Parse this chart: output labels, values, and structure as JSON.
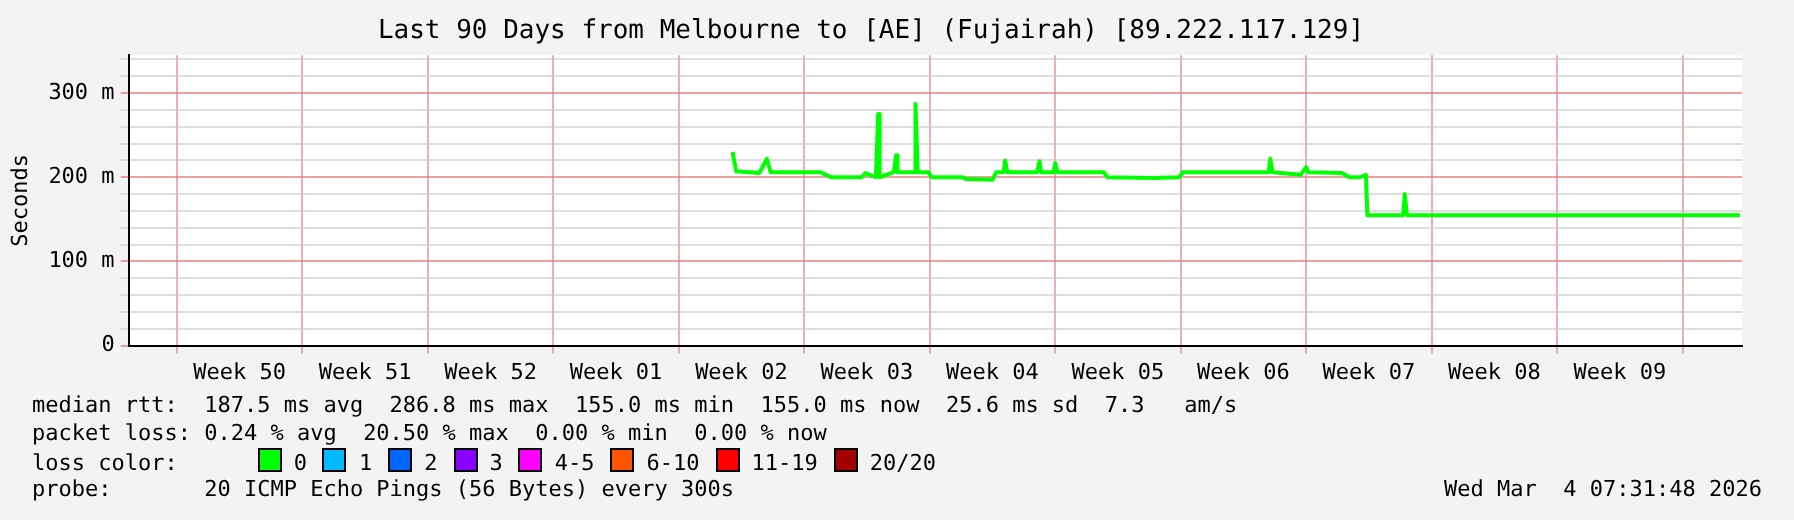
{
  "chart_data": {
    "type": "line",
    "title": "Last 90 Days from Melbourne to [AE] (Fujairah) [89.222.117.129]",
    "ylabel": "Seconds",
    "x": [
      "2026-01-07T00:00",
      "2026-01-07T05:00",
      "2026-01-08T12:00",
      "2026-01-08T22:00",
      "2026-01-09T03:00",
      "2026-01-11T22:00",
      "2026-01-12T12:00",
      "2026-01-14T05:00",
      "2026-01-14T10:00",
      "2026-01-15T00:00",
      "2026-01-15T03:00",
      "2026-01-15T05:00",
      "2026-01-16T00:00",
      "2026-01-16T03:00",
      "2026-01-16T05:00",
      "2026-01-17T03:00",
      "2026-01-17T05:00",
      "2026-01-17T08:00",
      "2026-01-17T22:00",
      "2026-01-18T03:00",
      "2026-01-19T20:00",
      "2026-01-20T00:00",
      "2026-01-21T12:00",
      "2026-01-21T17:00",
      "2026-01-22T03:00",
      "2026-01-22T05:00",
      "2026-01-22T08:00",
      "2026-01-24T00:00",
      "2026-01-24T03:00",
      "2026-01-24T05:00",
      "2026-01-24T22:00",
      "2026-01-25T00:00",
      "2026-01-25T03:00",
      "2026-01-27T17:00",
      "2026-01-27T22:00",
      "2026-01-30T12:00",
      "2026-01-31T22:00",
      "2026-02-01T03:00",
      "2026-02-05T22:00",
      "2026-02-06T00:00",
      "2026-02-06T03:00",
      "2026-02-07T17:00",
      "2026-02-08T00:00",
      "2026-02-08T03:00",
      "2026-02-10T00:00",
      "2026-02-10T10:00",
      "2026-02-11T00:00",
      "2026-02-11T08:00",
      "2026-02-11T10:00",
      "2026-02-13T10:00",
      "2026-02-13T12:00",
      "2026-02-13T15:00",
      "2026-03-04T05:00"
    ],
    "series": [
      {
        "name": "0",
        "color": "#00ff00",
        "values": [
          230,
          207,
          205,
          222,
          206,
          206,
          200,
          200,
          205,
          200,
          275,
          200,
          206,
          226,
          206,
          206,
          287,
          206,
          206,
          200,
          200,
          198,
          197,
          206,
          206,
          220,
          206,
          206,
          219,
          206,
          206,
          217,
          206,
          206,
          200,
          199,
          200,
          206,
          206,
          222,
          206,
          203,
          212,
          206,
          205,
          200,
          200,
          203,
          155,
          155,
          180,
          155,
          155
        ]
      },
      {
        "name": "1",
        "color": "#00bbff",
        "values": [
          null,
          null,
          null,
          null,
          null,
          null,
          null,
          null,
          null,
          null,
          null,
          null,
          null,
          null,
          null,
          null,
          null,
          null,
          null,
          null,
          null,
          null,
          null,
          null,
          null,
          null,
          null,
          null,
          null,
          null,
          null,
          null,
          null,
          null,
          null,
          null,
          null,
          null,
          null,
          null,
          null,
          null,
          null,
          null,
          null,
          null,
          null,
          null,
          null,
          null,
          null,
          null,
          null
        ]
      },
      {
        "name": "2",
        "color": "#0066ff",
        "values": [
          null,
          null,
          null,
          null,
          null,
          null,
          null,
          null,
          null,
          null,
          null,
          null,
          null,
          null,
          null,
          null,
          null,
          null,
          null,
          null,
          null,
          null,
          null,
          null,
          null,
          null,
          null,
          null,
          null,
          null,
          null,
          null,
          null,
          null,
          null,
          null,
          null,
          null,
          null,
          null,
          null,
          null,
          null,
          null,
          null,
          null,
          null,
          null,
          null,
          null,
          null,
          null,
          null
        ]
      },
      {
        "name": "3",
        "color": "#8800ff",
        "values": [
          null,
          null,
          null,
          null,
          null,
          null,
          null,
          null,
          null,
          null,
          null,
          null,
          null,
          null,
          null,
          null,
          null,
          null,
          null,
          null,
          null,
          null,
          null,
          null,
          null,
          null,
          null,
          null,
          null,
          null,
          null,
          null,
          null,
          null,
          null,
          null,
          null,
          null,
          null,
          null,
          null,
          null,
          null,
          null,
          null,
          null,
          null,
          null,
          null,
          null,
          null,
          null,
          null
        ]
      },
      {
        "name": "4-5",
        "color": "#ff00ff",
        "values": [
          null,
          null,
          null,
          null,
          null,
          null,
          null,
          null,
          null,
          null,
          null,
          null,
          null,
          null,
          null,
          null,
          null,
          null,
          null,
          null,
          null,
          null,
          null,
          null,
          null,
          null,
          null,
          null,
          null,
          null,
          null,
          null,
          null,
          null,
          null,
          null,
          null,
          null,
          null,
          null,
          null,
          null,
          null,
          null,
          null,
          null,
          null,
          null,
          null,
          null,
          null,
          null,
          null
        ]
      },
      {
        "name": "6-10",
        "color": "#ff5500",
        "values": [
          null,
          null,
          null,
          null,
          null,
          null,
          null,
          null,
          null,
          null,
          null,
          null,
          null,
          null,
          null,
          null,
          null,
          null,
          null,
          null,
          null,
          null,
          null,
          null,
          null,
          null,
          null,
          null,
          null,
          null,
          null,
          null,
          null,
          null,
          null,
          null,
          null,
          null,
          null,
          null,
          null,
          null,
          null,
          null,
          null,
          null,
          null,
          null,
          null,
          null,
          null,
          null,
          null
        ]
      },
      {
        "name": "11-19",
        "color": "#ff0000",
        "values": [
          null,
          null,
          null,
          null,
          null,
          null,
          null,
          null,
          null,
          null,
          null,
          null,
          null,
          null,
          null,
          null,
          null,
          null,
          null,
          null,
          null,
          null,
          null,
          null,
          null,
          null,
          null,
          null,
          null,
          null,
          null,
          null,
          null,
          null,
          null,
          null,
          null,
          null,
          null,
          null,
          null,
          null,
          null,
          null,
          null,
          null,
          null,
          null,
          null,
          null,
          null,
          null,
          null
        ]
      },
      {
        "name": "20/20",
        "color": "#a10000",
        "values": [
          null,
          null,
          null,
          null,
          null,
          null,
          null,
          null,
          null,
          null,
          null,
          null,
          null,
          null,
          null,
          null,
          null,
          null,
          null,
          null,
          null,
          null,
          null,
          null,
          null,
          null,
          null,
          null,
          null,
          null,
          null,
          null,
          null,
          null,
          null,
          null,
          null,
          null,
          null,
          null,
          null,
          null,
          null,
          null,
          null,
          null,
          null,
          null,
          null,
          null,
          null,
          null,
          null
        ]
      }
    ],
    "legend": "bottom",
    "legend_title": "loss color:",
    "grid": true,
    "xlim": [
      "2025-12-04T07:31",
      "2026-03-04T07:31"
    ],
    "xticks": [
      {
        "value": "2025-12-07",
        "label": null
      },
      {
        "value": "2025-12-10T12:00",
        "label": "Week 50"
      },
      {
        "value": "2025-12-14",
        "label": null
      },
      {
        "value": "2025-12-17T12:00",
        "label": "Week 51"
      },
      {
        "value": "2025-12-21",
        "label": null
      },
      {
        "value": "2025-12-24T12:00",
        "label": "Week 52"
      },
      {
        "value": "2025-12-28",
        "label": null
      },
      {
        "value": "2025-12-31T12:00",
        "label": "Week 01"
      },
      {
        "value": "2026-01-04",
        "label": null
      },
      {
        "value": "2026-01-07T12:00",
        "label": "Week 02"
      },
      {
        "value": "2026-01-11",
        "label": null
      },
      {
        "value": "2026-01-14T12:00",
        "label": "Week 03"
      },
      {
        "value": "2026-01-18",
        "label": null
      },
      {
        "value": "2026-01-21T12:00",
        "label": "Week 04"
      },
      {
        "value": "2026-01-25",
        "label": null
      },
      {
        "value": "2026-01-28T12:00",
        "label": "Week 05"
      },
      {
        "value": "2026-02-01",
        "label": null
      },
      {
        "value": "2026-02-04T12:00",
        "label": "Week 06"
      },
      {
        "value": "2026-02-08",
        "label": null
      },
      {
        "value": "2026-02-11T12:00",
        "label": "Week 07"
      },
      {
        "value": "2026-02-15",
        "label": null
      },
      {
        "value": "2026-02-18T12:00",
        "label": "Week 08"
      },
      {
        "value": "2026-02-22",
        "label": null
      },
      {
        "value": "2026-02-25T12:00",
        "label": "Week 09"
      },
      {
        "value": "2026-03-01",
        "label": null
      }
    ],
    "ylim": [
      0,
      345
    ],
    "yticks": [
      0,
      {
        "value": 20,
        "label": null
      },
      {
        "value": 40,
        "label": null
      },
      {
        "value": 60,
        "label": null
      },
      {
        "value": 80,
        "label": null
      },
      {
        "value": 100,
        "label": "100 m"
      },
      {
        "value": 120,
        "label": null
      },
      {
        "value": 140,
        "label": null
      },
      {
        "value": 160,
        "label": null
      },
      {
        "value": 180,
        "label": null
      },
      {
        "value": 200,
        "label": "200 m"
      },
      {
        "value": 220,
        "label": null
      },
      {
        "value": 240,
        "label": null
      },
      {
        "value": 260,
        "label": null
      },
      {
        "value": 280,
        "label": null
      },
      {
        "value": 300,
        "label": "300 m"
      },
      {
        "value": 320,
        "label": null
      },
      {
        "value": 340,
        "label": null
      }
    ],
    "annotations": [
      "median rtt:  187.5 ms avg  286.8 ms max  155.0 ms min  155.0 ms now  25.6 ms sd  7.3   am/s",
      "packet loss: 0.24 % avg  20.50 % max  0.00 % min  0.00 % now",
      "probe:       20 ICMP Echo Pings (56 Bytes) every 300s",
      "Wed Mar  4 07:31:48 2026"
    ]
  }
}
